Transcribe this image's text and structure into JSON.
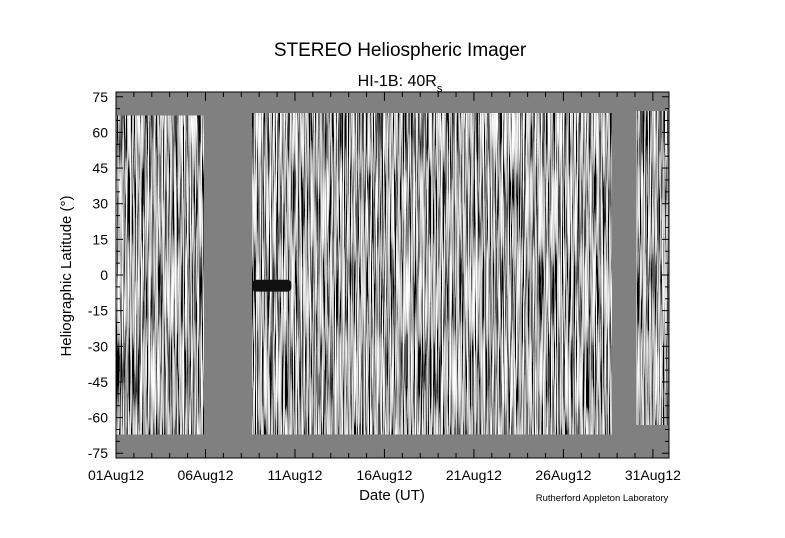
{
  "chart_data": {
    "type": "heatmap",
    "title": "STEREO Heliospheric Imager",
    "subtitle": "HI-1B: 40R",
    "subtitle_subscript": "s",
    "xlabel": "Date (UT)",
    "ylabel": "Heliographic Latitude (°)",
    "credit": "Rutherford Appleton Laboratory",
    "x_tick_labels": [
      "01Aug12",
      "06Aug12",
      "11Aug12",
      "16Aug12",
      "21Aug12",
      "26Aug12",
      "31Aug12"
    ],
    "x_tick_days": [
      1,
      6,
      11,
      16,
      21,
      26,
      31
    ],
    "xlim_days": [
      1,
      31.9
    ],
    "y_ticks": [
      75,
      60,
      45,
      30,
      15,
      0,
      -15,
      -30,
      -45,
      -60,
      -75
    ],
    "y_tick_labels": [
      "75",
      "60",
      "45",
      "30",
      "15",
      "0",
      "-15",
      "-30",
      "-45",
      "-60",
      "-75"
    ],
    "ylim": [
      -77,
      77
    ],
    "background_color": "#808080",
    "data_segments": [
      {
        "start_day": 1.0,
        "end_day": 5.9,
        "lat_min": -67,
        "lat_max": 67
      },
      {
        "start_day": 8.6,
        "end_day": 28.7,
        "lat_min": -67,
        "lat_max": 68
      },
      {
        "start_day": 30.1,
        "end_day": 31.8,
        "lat_min": -63,
        "lat_max": 69
      }
    ],
    "dark_feature": {
      "start_day": 8.6,
      "end_day": 10.8,
      "lat_min": -7,
      "lat_max": -2
    }
  }
}
